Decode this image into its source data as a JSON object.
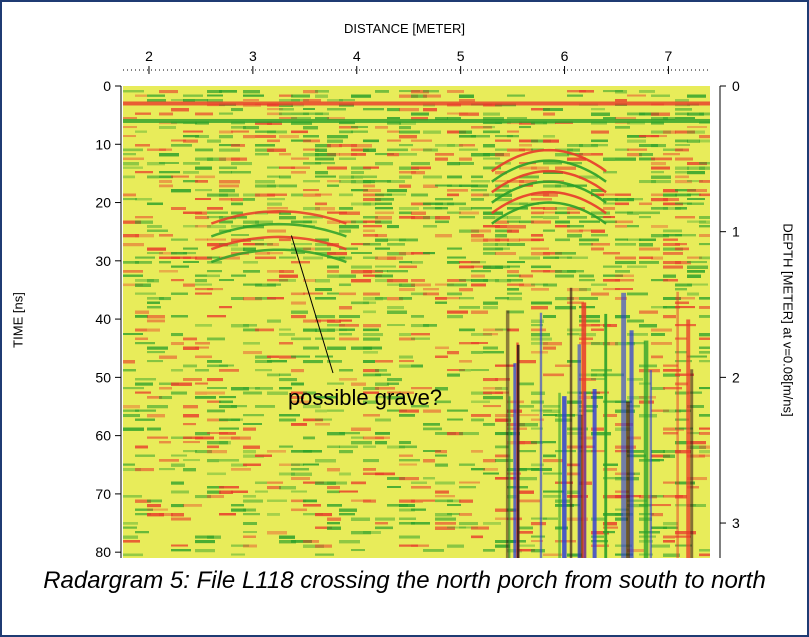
{
  "chart_data": {
    "type": "heatmap",
    "x_axis": {
      "title": "DISTANCE [METER]",
      "ticks": [
        2,
        3,
        4,
        5,
        6,
        7
      ],
      "range": [
        1.75,
        7.4
      ]
    },
    "y_axis_left": {
      "title": "TIME [ns]",
      "ticks": [
        0,
        10,
        20,
        30,
        40,
        50,
        60,
        70,
        80
      ],
      "range": [
        0,
        81
      ]
    },
    "y_axis_right": {
      "title": "DEPTH [METER] at v=0.08[m/ns]",
      "ticks": [
        0,
        1,
        2,
        3
      ],
      "velocity_m_per_ns": 0.08
    },
    "annotation": {
      "text": "possible grave?",
      "points_to": {
        "x": 3.4,
        "y": 26
      }
    },
    "colors": {
      "background": "#e8ec5a",
      "red": "#e83a2a",
      "green": "#2aa02a",
      "blue": "#2a3ad8",
      "dark": "#3a1a1a"
    }
  },
  "caption": "Radargram 5: File L118 crossing the north porch from south to north",
  "frame_color": "#1f3b73"
}
